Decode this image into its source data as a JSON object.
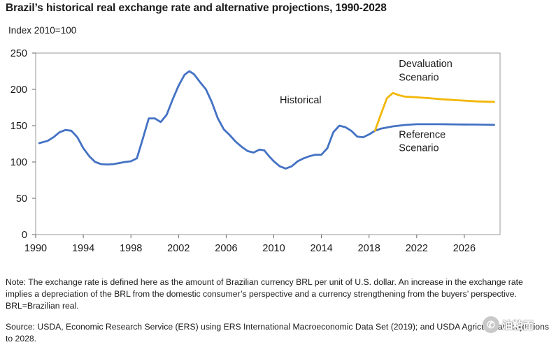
{
  "chart_data": {
    "type": "line",
    "title": "Brazil’s historical real exchange rate and alternative projections, 1990-2028",
    "ylabel": "Index 2010=100",
    "xlabel": "",
    "xlim": [
      1990,
      2029
    ],
    "ylim": [
      0,
      250
    ],
    "x_ticks": [
      1990,
      1994,
      1998,
      2002,
      2006,
      2010,
      2014,
      2018,
      2022,
      2026
    ],
    "y_ticks": [
      0,
      50,
      100,
      150,
      200,
      250
    ],
    "series": [
      {
        "name": "Historical",
        "color": "#4472C4",
        "points": [
          [
            1990.3,
            126
          ],
          [
            1991.0,
            129
          ],
          [
            1991.5,
            134
          ],
          [
            1992.0,
            141
          ],
          [
            1992.5,
            144
          ],
          [
            1993.0,
            143
          ],
          [
            1993.5,
            134
          ],
          [
            1994.0,
            119
          ],
          [
            1994.5,
            108
          ],
          [
            1995.0,
            100
          ],
          [
            1995.5,
            97
          ],
          [
            1996.0,
            96.5
          ],
          [
            1996.5,
            97
          ],
          [
            1997.0,
            98.5
          ],
          [
            1997.5,
            100
          ],
          [
            1998.0,
            101
          ],
          [
            1998.5,
            105
          ],
          [
            1999.0,
            132
          ],
          [
            1999.5,
            160
          ],
          [
            2000.0,
            160
          ],
          [
            2000.5,
            155
          ],
          [
            2001.0,
            165
          ],
          [
            2001.5,
            186
          ],
          [
            2002.0,
            205
          ],
          [
            2002.5,
            220
          ],
          [
            2002.9,
            225
          ],
          [
            2003.3,
            221
          ],
          [
            2003.8,
            210
          ],
          [
            2004.3,
            200
          ],
          [
            2004.8,
            182
          ],
          [
            2005.3,
            160
          ],
          [
            2005.8,
            145
          ],
          [
            2006.3,
            137
          ],
          [
            2006.8,
            128
          ],
          [
            2007.3,
            121
          ],
          [
            2007.8,
            115
          ],
          [
            2008.3,
            113
          ],
          [
            2008.8,
            117
          ],
          [
            2009.2,
            116
          ],
          [
            2009.6,
            108
          ],
          [
            2010.0,
            101
          ],
          [
            2010.5,
            94
          ],
          [
            2011.0,
            91
          ],
          [
            2011.5,
            94
          ],
          [
            2012.0,
            101
          ],
          [
            2012.5,
            105
          ],
          [
            2013.0,
            108
          ],
          [
            2013.5,
            110
          ],
          [
            2014.0,
            110
          ],
          [
            2014.5,
            119
          ],
          [
            2015.0,
            141
          ],
          [
            2015.5,
            150
          ],
          [
            2016.0,
            148
          ],
          [
            2016.5,
            143
          ],
          [
            2017.0,
            135
          ],
          [
            2017.5,
            134
          ],
          [
            2018.0,
            138
          ],
          [
            2018.5,
            143
          ]
        ]
      },
      {
        "name": "Reference Scenario",
        "color": "#4472C4",
        "points": [
          [
            2018.5,
            143
          ],
          [
            2019.0,
            146
          ],
          [
            2020.0,
            149
          ],
          [
            2021.0,
            151
          ],
          [
            2022.0,
            152
          ],
          [
            2023.0,
            152
          ],
          [
            2024.0,
            152
          ],
          [
            2025.0,
            151.8
          ],
          [
            2026.0,
            151.6
          ],
          [
            2027.0,
            151.5
          ],
          [
            2028.0,
            151.3
          ],
          [
            2028.5,
            151.2
          ]
        ]
      },
      {
        "name": "Devaluation Scenario",
        "color": "#F2B705",
        "points": [
          [
            2018.5,
            143
          ],
          [
            2019.0,
            166
          ],
          [
            2019.5,
            188
          ],
          [
            2020.0,
            195
          ],
          [
            2020.5,
            192
          ],
          [
            2021.0,
            190
          ],
          [
            2022.0,
            189
          ],
          [
            2023.0,
            188
          ],
          [
            2024.0,
            186.5
          ],
          [
            2025.0,
            185.5
          ],
          [
            2026.0,
            184.5
          ],
          [
            2027.0,
            183.5
          ],
          [
            2028.0,
            183
          ],
          [
            2028.5,
            182.8
          ]
        ]
      }
    ],
    "annotations": [
      {
        "text": "Historical",
        "x": 2010.5,
        "y": 181
      },
      {
        "text": "Devaluation",
        "x": 2020.5,
        "y": 231
      },
      {
        "text": "Scenario",
        "x": 2020.5,
        "y": 212
      },
      {
        "text": "Reference",
        "x": 2020.5,
        "y": 133
      },
      {
        "text": "Scenario",
        "x": 2020.5,
        "y": 115
      }
    ]
  },
  "note": "Note: The exchange rate is defined here as the amount of Brazilian currency BRL per unit of U.S. dollar. An increase in the exchange rate implies a depreciation of the BRL from the domestic consumer’s perspective and a currency strengthening from the buyers’ perspective. BRL=Brazilian real.",
  "source": "Source: USDA, Economic Research Service (ERS) using ERS International Macroeconomic Data Set (2019); and USDA Agricultural Projections to 2028.",
  "watermark": {
    "icon": "wechat-icon",
    "text": "油粕面"
  }
}
